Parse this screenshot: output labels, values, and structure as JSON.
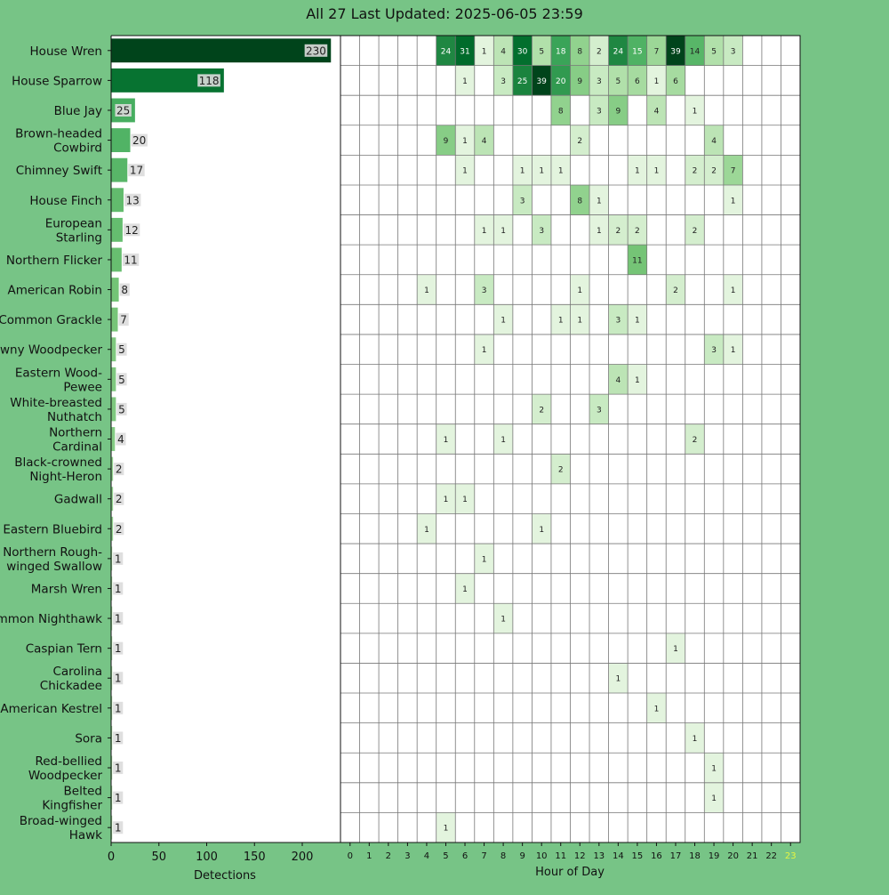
{
  "title": "All 27 Last Updated: 2025-06-05 23:59",
  "colors": {
    "background": "#77c486",
    "highlight_hour": "#e6f542",
    "cmap": [
      "#f7fcf5",
      "#e5f5e0",
      "#c7e9c0",
      "#a1d99b",
      "#74c476",
      "#41ab5d",
      "#238b45",
      "#006d2c",
      "#00441b"
    ]
  },
  "chart_data": [
    {
      "type": "bar",
      "orientation": "horizontal",
      "categories": [
        "House Wren",
        "House Sparrow",
        "Blue Jay",
        "Brown-headed\nCowbird",
        "Chimney Swift",
        "House Finch",
        "European\nStarling",
        "Northern Flicker",
        "American Robin",
        "Common Grackle",
        "Downy Woodpecker",
        "Eastern Wood-\nPewee",
        "White-breasted\nNuthatch",
        "Northern\nCardinal",
        "Black-crowned\nNight-Heron",
        "Gadwall",
        "Eastern Bluebird",
        "Northern Rough-\nwinged Swallow",
        "Marsh Wren",
        "Common Nighthawk",
        "Caspian Tern",
        "Carolina\nChickadee",
        "American Kestrel",
        "Sora",
        "Red-bellied\nWoodpecker",
        "Belted\nKingfisher",
        "Broad-winged\nHawk"
      ],
      "values": [
        230,
        118,
        25,
        20,
        17,
        13,
        12,
        11,
        8,
        7,
        5,
        5,
        5,
        4,
        2,
        2,
        2,
        1,
        1,
        1,
        1,
        1,
        1,
        1,
        1,
        1,
        1
      ],
      "xlabel": "Detections",
      "xticks": [
        0,
        50,
        100,
        150,
        200
      ],
      "xlim": [
        0,
        240
      ]
    },
    {
      "type": "heatmap",
      "xlabel": "Hour of Day",
      "x": [
        0,
        1,
        2,
        3,
        4,
        5,
        6,
        7,
        8,
        9,
        10,
        11,
        12,
        13,
        14,
        15,
        16,
        17,
        18,
        19,
        20,
        21,
        22,
        23
      ],
      "highlight_hour": 23,
      "rows": [
        [
          null,
          null,
          null,
          null,
          null,
          24,
          31,
          1,
          4,
          30,
          5,
          18,
          8,
          2,
          24,
          15,
          7,
          39,
          14,
          5,
          3,
          null,
          null,
          null
        ],
        [
          null,
          null,
          null,
          null,
          null,
          null,
          1,
          null,
          3,
          25,
          39,
          20,
          9,
          3,
          5,
          6,
          1,
          6,
          null,
          null,
          null,
          null,
          null,
          null
        ],
        [
          null,
          null,
          null,
          null,
          null,
          null,
          null,
          null,
          null,
          null,
          null,
          8,
          null,
          3,
          9,
          null,
          4,
          null,
          1,
          null,
          null,
          null,
          null,
          null
        ],
        [
          null,
          null,
          null,
          null,
          null,
          9,
          1,
          4,
          null,
          null,
          null,
          null,
          2,
          null,
          null,
          null,
          null,
          null,
          null,
          4,
          null,
          null,
          null,
          null
        ],
        [
          null,
          null,
          null,
          null,
          null,
          null,
          1,
          null,
          null,
          1,
          1,
          1,
          null,
          null,
          null,
          1,
          1,
          null,
          2,
          2,
          7,
          null,
          null,
          null
        ],
        [
          null,
          null,
          null,
          null,
          null,
          null,
          null,
          null,
          null,
          3,
          null,
          null,
          8,
          1,
          null,
          null,
          null,
          null,
          null,
          null,
          1,
          null,
          null,
          null
        ],
        [
          null,
          null,
          null,
          null,
          null,
          null,
          null,
          1,
          1,
          null,
          3,
          null,
          null,
          1,
          2,
          2,
          null,
          null,
          2,
          null,
          null,
          null,
          null,
          null
        ],
        [
          null,
          null,
          null,
          null,
          null,
          null,
          null,
          null,
          null,
          null,
          null,
          null,
          null,
          null,
          null,
          11,
          null,
          null,
          null,
          null,
          null,
          null,
          null,
          null
        ],
        [
          null,
          null,
          null,
          null,
          1,
          null,
          null,
          3,
          null,
          null,
          null,
          null,
          1,
          null,
          null,
          null,
          null,
          2,
          null,
          null,
          1,
          null,
          null,
          null
        ],
        [
          null,
          null,
          null,
          null,
          null,
          null,
          null,
          null,
          1,
          null,
          null,
          1,
          1,
          null,
          3,
          1,
          null,
          null,
          null,
          null,
          null,
          null,
          null,
          null
        ],
        [
          null,
          null,
          null,
          null,
          null,
          null,
          null,
          1,
          null,
          null,
          null,
          null,
          null,
          null,
          null,
          null,
          null,
          null,
          null,
          3,
          1,
          null,
          null,
          null
        ],
        [
          null,
          null,
          null,
          null,
          null,
          null,
          null,
          null,
          null,
          null,
          null,
          null,
          null,
          null,
          4,
          1,
          null,
          null,
          null,
          null,
          null,
          null,
          null,
          null
        ],
        [
          null,
          null,
          null,
          null,
          null,
          null,
          null,
          null,
          null,
          null,
          2,
          null,
          null,
          3,
          null,
          null,
          null,
          null,
          null,
          null,
          null,
          null,
          null,
          null
        ],
        [
          null,
          null,
          null,
          null,
          null,
          1,
          null,
          null,
          1,
          null,
          null,
          null,
          null,
          null,
          null,
          null,
          null,
          null,
          2,
          null,
          null,
          null,
          null,
          null
        ],
        [
          null,
          null,
          null,
          null,
          null,
          null,
          null,
          null,
          null,
          null,
          null,
          2,
          null,
          null,
          null,
          null,
          null,
          null,
          null,
          null,
          null,
          null,
          null,
          null
        ],
        [
          null,
          null,
          null,
          null,
          null,
          1,
          1,
          null,
          null,
          null,
          null,
          null,
          null,
          null,
          null,
          null,
          null,
          null,
          null,
          null,
          null,
          null,
          null,
          null
        ],
        [
          null,
          null,
          null,
          null,
          1,
          null,
          null,
          null,
          null,
          null,
          1,
          null,
          null,
          null,
          null,
          null,
          null,
          null,
          null,
          null,
          null,
          null,
          null,
          null
        ],
        [
          null,
          null,
          null,
          null,
          null,
          null,
          null,
          1,
          null,
          null,
          null,
          null,
          null,
          null,
          null,
          null,
          null,
          null,
          null,
          null,
          null,
          null,
          null,
          null
        ],
        [
          null,
          null,
          null,
          null,
          null,
          null,
          1,
          null,
          null,
          null,
          null,
          null,
          null,
          null,
          null,
          null,
          null,
          null,
          null,
          null,
          null,
          null,
          null,
          null
        ],
        [
          null,
          null,
          null,
          null,
          null,
          null,
          null,
          null,
          1,
          null,
          null,
          null,
          null,
          null,
          null,
          null,
          null,
          null,
          null,
          null,
          null,
          null,
          null,
          null
        ],
        [
          null,
          null,
          null,
          null,
          null,
          null,
          null,
          null,
          null,
          null,
          null,
          null,
          null,
          null,
          null,
          null,
          null,
          1,
          null,
          null,
          null,
          null,
          null,
          null
        ],
        [
          null,
          null,
          null,
          null,
          null,
          null,
          null,
          null,
          null,
          null,
          null,
          null,
          null,
          null,
          1,
          null,
          null,
          null,
          null,
          null,
          null,
          null,
          null,
          null
        ],
        [
          null,
          null,
          null,
          null,
          null,
          null,
          null,
          null,
          null,
          null,
          null,
          null,
          null,
          null,
          null,
          null,
          1,
          null,
          null,
          null,
          null,
          null,
          null,
          null
        ],
        [
          null,
          null,
          null,
          null,
          null,
          null,
          null,
          null,
          null,
          null,
          null,
          null,
          null,
          null,
          null,
          null,
          null,
          null,
          1,
          null,
          null,
          null,
          null,
          null
        ],
        [
          null,
          null,
          null,
          null,
          null,
          null,
          null,
          null,
          null,
          null,
          null,
          null,
          null,
          null,
          null,
          null,
          null,
          null,
          null,
          1,
          null,
          null,
          null,
          null
        ],
        [
          null,
          null,
          null,
          null,
          null,
          null,
          null,
          null,
          null,
          null,
          null,
          null,
          null,
          null,
          null,
          null,
          null,
          null,
          null,
          1,
          null,
          null,
          null,
          null
        ],
        [
          null,
          null,
          null,
          null,
          null,
          1,
          null,
          null,
          null,
          null,
          null,
          null,
          null,
          null,
          null,
          null,
          null,
          null,
          null,
          null,
          null,
          null,
          null,
          null
        ]
      ]
    }
  ]
}
